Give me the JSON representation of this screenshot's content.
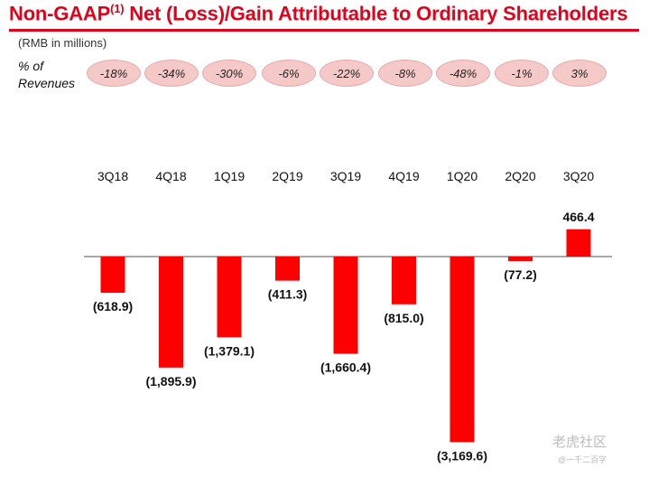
{
  "header": {
    "title_main": "Non-GAAP",
    "title_sup": "(1)",
    "title_rest": " Net (Loss)/Gain Attributable to Ordinary Shareholders",
    "units": "(RMB in millions)",
    "revenue_label_1": "% of",
    "revenue_label_2": "Revenues"
  },
  "revenue_pct": [
    "-18%",
    "-34%",
    "-30%",
    "-6%",
    "-22%",
    "-8%",
    "-48%",
    "-1%",
    "3%"
  ],
  "colors": {
    "accent": "#e3001b",
    "bar": "#ff0000",
    "badge": "#f6c9c9"
  },
  "chart_data": {
    "type": "bar",
    "categories": [
      "3Q18",
      "4Q18",
      "1Q19",
      "2Q19",
      "3Q19",
      "4Q19",
      "1Q20",
      "2Q20",
      "3Q20"
    ],
    "values": [
      -618.9,
      -1895.9,
      -1379.1,
      -411.3,
      -1660.4,
      -815.0,
      -3169.6,
      -77.2,
      466.4
    ],
    "data_labels": [
      "(618.9)",
      "(1,895.9)",
      "(1,379.1)",
      "(411.3)",
      "(1,660.4)",
      "(815.0)",
      "(3,169.6)",
      "(77.2)",
      "466.4"
    ],
    "ylabel": "RMB in millions",
    "grid": false,
    "legend": "none"
  },
  "watermark": {
    "text": "老虎社区",
    "sub": "@一千二百字"
  }
}
